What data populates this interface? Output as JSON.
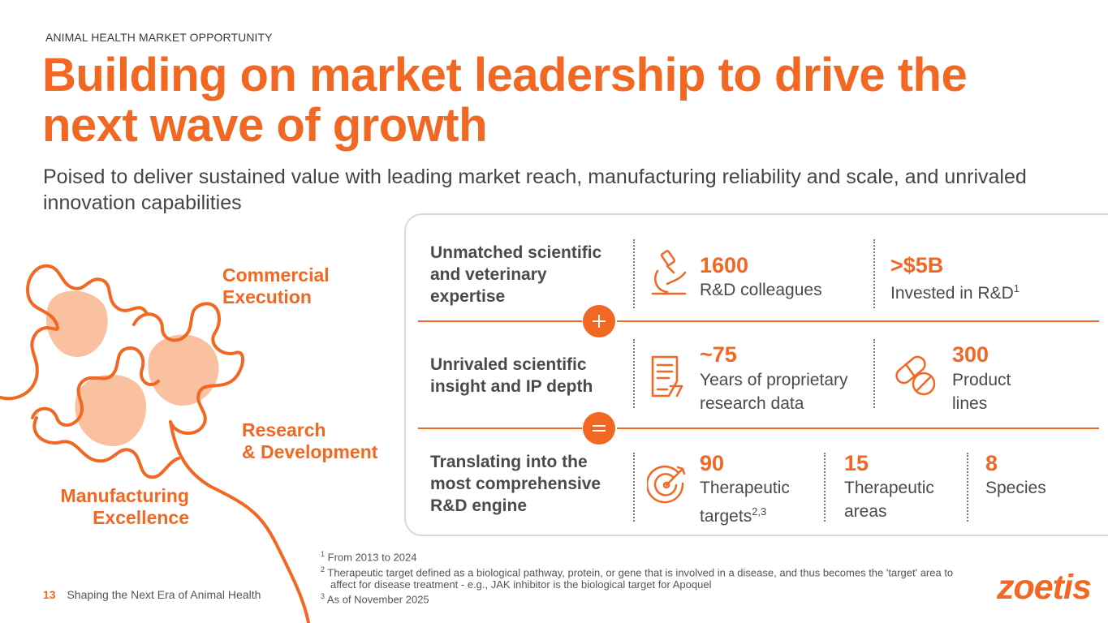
{
  "header": {
    "kicker": "ANIMAL HEALTH MARKET OPPORTUNITY",
    "title": "Building on market leadership to drive the next wave of growth",
    "subtitle": "Poised to deliver sustained value with leading market reach, manufacturing reliability and scale, and unrivaled innovation capabilities"
  },
  "puzzle": {
    "commercial": [
      "Commercial",
      "Execution"
    ],
    "research": [
      "Research",
      "& Development"
    ],
    "manufacturing": [
      "Manufacturing",
      "Excellence"
    ]
  },
  "rows": [
    {
      "label": "Unmatched scientific and veterinary expertise",
      "stats": [
        {
          "icon": "microscope-icon",
          "value": "1600",
          "text": "R&D colleagues"
        },
        {
          "value": ">$5B",
          "text": "Invested in R&D",
          "sup": "1"
        }
      ]
    },
    {
      "label": "Unrivaled scientific insight and IP depth",
      "stats": [
        {
          "icon": "document-icon",
          "value": "~75",
          "text": "Years of proprietary research data"
        },
        {
          "icon": "pill-icon",
          "value": "300",
          "text": "Product lines"
        }
      ]
    },
    {
      "label": "Translating into the most comprehensive R&D engine",
      "stats": [
        {
          "icon": "target-icon",
          "value": "90",
          "text": "Therapeutic targets",
          "sup": "2,3"
        },
        {
          "value": "15",
          "text": "Therapeutic areas"
        },
        {
          "value": "8",
          "text": "Species"
        }
      ]
    }
  ],
  "operators": {
    "plus": "+",
    "equals": "="
  },
  "footnotes": [
    {
      "sup": "1",
      "text": "From 2013 to 2024"
    },
    {
      "sup": "2",
      "text": "Therapeutic target defined as a biological pathway, protein, or gene that is involved in a disease, and thus becomes the 'target' area to affect for disease treatment - e.g., JAK inhibitor is the biological target for Apoquel"
    },
    {
      "sup": "3",
      "text": "As of November 2025"
    }
  ],
  "footer": {
    "page_number": "13",
    "text": "Shaping the Next Era of Animal Health",
    "logo": "zoetis"
  },
  "colors": {
    "accent": "#f26722",
    "puzzle_fill": "#f9c1a0",
    "panel_border": "#d9d9d9"
  }
}
